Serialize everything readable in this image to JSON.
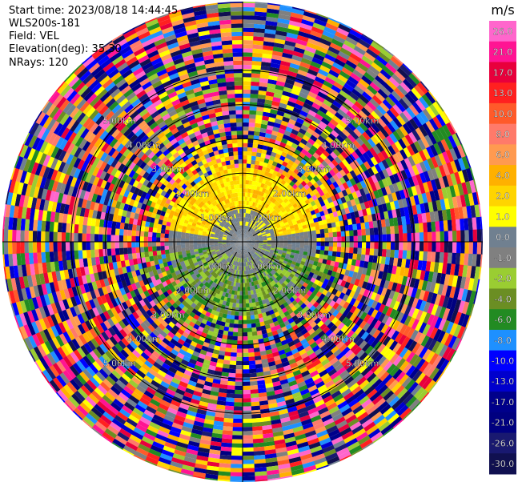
{
  "header": {
    "start_time": "Start time: 2023/08/18 14:44:45",
    "instrument": "WLS200s-181",
    "field": "Field: VEL",
    "elevation": "Elevation(deg): 35.30",
    "nrays": "NRays: 120"
  },
  "chart_data": {
    "type": "heatmap",
    "subtype": "polar-ppi",
    "title": "",
    "field": "VEL",
    "units": "m/s",
    "nrays": 120,
    "elevation_deg": 35.3,
    "range_rings_km": [
      1.0,
      2.0,
      3.0,
      4.0,
      5.0
    ],
    "range_ring_labels": [
      "1.00km",
      "2.00km",
      "3.00km",
      "4.00km",
      "5.00km"
    ],
    "max_range_km": 7.0,
    "colorbar": {
      "label": "m/s",
      "ticks": [
        "26.0",
        "21.0",
        "17.0",
        "13.0",
        "10.0",
        "8.0",
        "6.0",
        "4.0",
        "2.0",
        "1.0",
        "0.0",
        "-1.0",
        "-2.0",
        "-4.0",
        "-6.0",
        "-8.0",
        "-10.0",
        "-13.0",
        "-17.0",
        "-21.0",
        "-26.0",
        "-30.0"
      ],
      "colors": [
        "#ff66cc",
        "#ff1493",
        "#e8003c",
        "#ff2020",
        "#ff5a2a",
        "#ff7a6a",
        "#ff9a50",
        "#ffb000",
        "#ffd400",
        "#ffff00",
        "#708090",
        "#808080",
        "#9acd32",
        "#6b8e23",
        "#228b22",
        "#1e90ff",
        "#0000ff",
        "#0000cd",
        "#00008b",
        "#000080",
        "#191970",
        "#101050"
      ]
    },
    "pattern": {
      "inner_radius_km": 0.5,
      "gray_zone_km": 0.9,
      "yellow_zone_km": 2.2,
      "noise_start_km": 3.0,
      "north_sector": "yellow (positive, 1 to 4 m/s)",
      "south_sector": "green (negative, -2 to -6 m/s)",
      "outer": "random noise across full scale"
    }
  }
}
